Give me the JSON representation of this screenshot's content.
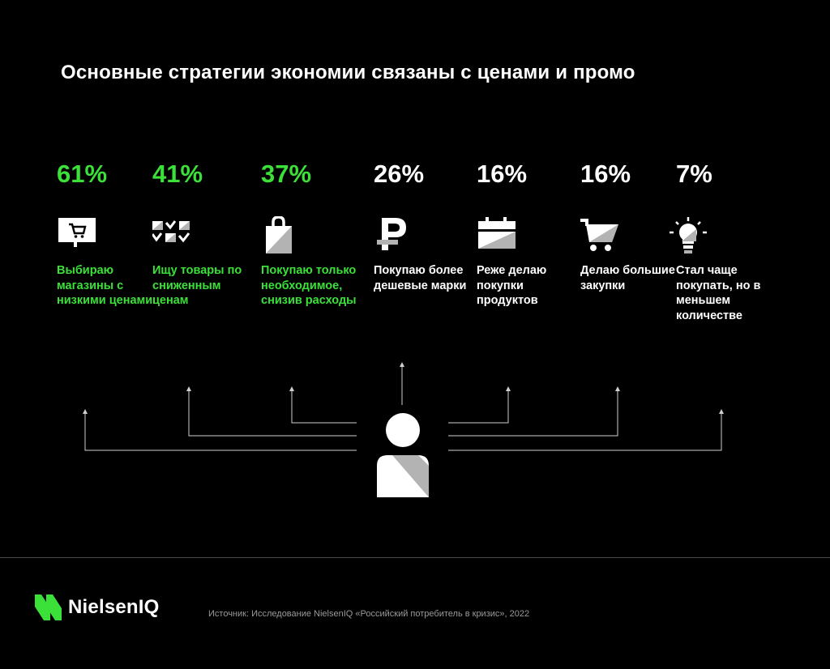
{
  "title": "Основные стратегии экономии связаны с ценами и промо",
  "colors": {
    "accent": "#3be039",
    "text": "#ffffff",
    "background": "#000000",
    "icon_grey": "#b3b3b3"
  },
  "stats": [
    {
      "value": "61%",
      "label": "Выбираю магазины с низкими ценами",
      "highlight": true,
      "icon": "store-cart-icon"
    },
    {
      "value": "41%",
      "label": "Ищу товары по сниженным ценам",
      "highlight": true,
      "icon": "checklist-icon"
    },
    {
      "value": "37%",
      "label": "Покупаю только необходимое, снизив расходы",
      "highlight": true,
      "icon": "shopping-bag-icon"
    },
    {
      "value": "26%",
      "label": "Покупаю более дешевые марки",
      "highlight": false,
      "icon": "ruble-icon"
    },
    {
      "value": "16%",
      "label": "Реже делаю покупки продуктов",
      "highlight": false,
      "icon": "calendar-icon"
    },
    {
      "value": "16%",
      "label": "Делаю большие закупки",
      "highlight": false,
      "icon": "shopping-cart-icon"
    },
    {
      "value": "7%",
      "label": "Стал чаще покупать, но в меньшем количестве",
      "highlight": false,
      "icon": "lightbulb-icon"
    }
  ],
  "center_icon": "person-icon",
  "footer": {
    "brand": "NielsenIQ",
    "source": "Источник: Исследование NielsenIQ «Российский потребитель в кризис», 2022"
  }
}
